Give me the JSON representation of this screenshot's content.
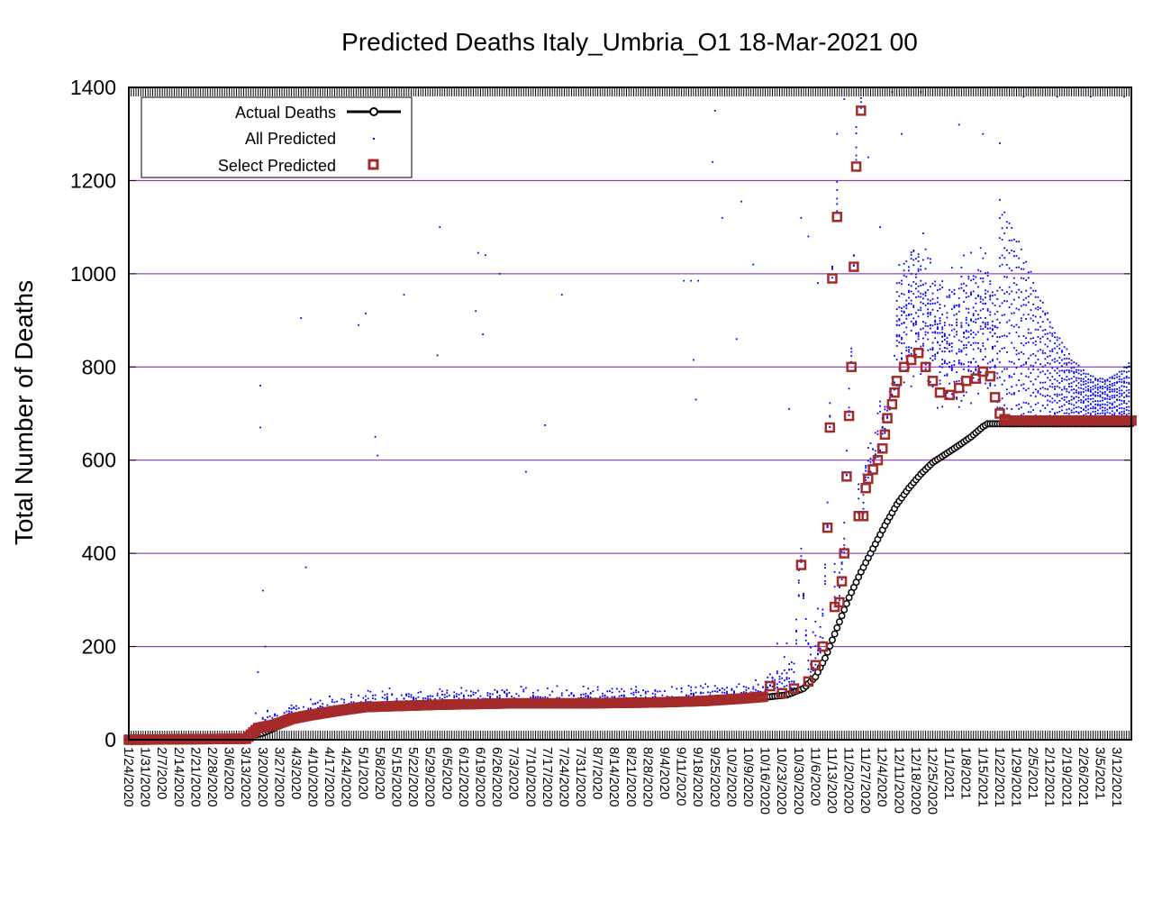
{
  "chart_data": {
    "type": "scatter",
    "title": "Predicted Deaths Italy_Umbria_O1 18-Mar-2021 00",
    "ylabel": "Total Number of Deaths",
    "xlabel": "",
    "ylim": [
      0,
      1400
    ],
    "yticks": [
      0,
      200,
      400,
      600,
      800,
      1000,
      1200,
      1400
    ],
    "x_start": "1/24/2020",
    "x_end": "3/18/2021",
    "x_tick_labels": [
      "1/24/2020",
      "1/31/2020",
      "2/7/2020",
      "2/14/2020",
      "2/21/2020",
      "2/28/2020",
      "3/6/2020",
      "3/13/2020",
      "3/20/2020",
      "3/27/2020",
      "4/3/2020",
      "4/10/2020",
      "4/17/2020",
      "4/24/2020",
      "5/1/2020",
      "5/8/2020",
      "5/15/2020",
      "5/22/2020",
      "5/29/2020",
      "6/5/2020",
      "6/12/2020",
      "6/19/2020",
      "6/26/2020",
      "7/3/2020",
      "7/10/2020",
      "7/17/2020",
      "7/24/2020",
      "7/31/2020",
      "8/7/2020",
      "8/14/2020",
      "8/21/2020",
      "8/28/2020",
      "9/4/2020",
      "9/11/2020",
      "9/18/2020",
      "9/25/2020",
      "10/2/2020",
      "10/9/2020",
      "10/16/2020",
      "10/23/2020",
      "10/30/2020",
      "11/6/2020",
      "11/13/2020",
      "11/20/2020",
      "11/27/2020",
      "12/4/2020",
      "12/11/2020",
      "12/18/2020",
      "12/25/2020",
      "1/1/2021",
      "1/8/2021",
      "1/15/2021",
      "1/22/2021",
      "1/29/2021",
      "2/5/2021",
      "2/12/2021",
      "2/19/2021",
      "2/26/2021",
      "3/5/2021",
      "3/12/2021"
    ],
    "grid": "horizontal",
    "legend_position": "top-left",
    "legend": [
      {
        "label": "Actual Deaths",
        "style": "line-circle",
        "color": "#000000"
      },
      {
        "label": "All Predicted",
        "style": "dot",
        "color": "#0000ff"
      },
      {
        "label": "Select Predicted",
        "style": "square",
        "color": "#a52a2a"
      }
    ],
    "series": [
      {
        "name": "Actual Deaths",
        "color": "#000000",
        "points": [
          [
            "3/13/2020",
            5
          ],
          [
            "3/20/2020",
            14
          ],
          [
            "3/27/2020",
            30
          ],
          [
            "4/3/2020",
            48
          ],
          [
            "4/10/2020",
            55
          ],
          [
            "4/17/2020",
            60
          ],
          [
            "4/24/2020",
            66
          ],
          [
            "5/1/2020",
            70
          ],
          [
            "5/15/2020",
            73
          ],
          [
            "6/1/2020",
            75
          ],
          [
            "7/1/2020",
            77
          ],
          [
            "8/1/2020",
            77
          ],
          [
            "9/1/2020",
            78
          ],
          [
            "9/20/2020",
            82
          ],
          [
            "10/10/2020",
            88
          ],
          [
            "10/25/2020",
            96
          ],
          [
            "11/1/2020",
            110
          ],
          [
            "11/6/2020",
            135
          ],
          [
            "11/10/2020",
            175
          ],
          [
            "11/15/2020",
            240
          ],
          [
            "11/20/2020",
            305
          ],
          [
            "11/25/2020",
            360
          ],
          [
            "11/30/2020",
            410
          ],
          [
            "12/5/2020",
            460
          ],
          [
            "12/10/2020",
            505
          ],
          [
            "12/15/2020",
            540
          ],
          [
            "12/20/2020",
            570
          ],
          [
            "12/25/2020",
            595
          ],
          [
            "12/31/2020",
            615
          ],
          [
            "1/5/2021",
            632
          ],
          [
            "1/10/2021",
            650
          ],
          [
            "1/15/2021",
            672
          ],
          [
            "1/17/2021",
            678
          ],
          [
            "3/18/2021",
            678
          ]
        ]
      },
      {
        "name": "Select Predicted",
        "color": "#a52a2a",
        "points": [
          [
            "1/24/2020",
            0
          ],
          [
            "3/13/2020",
            2
          ],
          [
            "3/18/2020",
            25
          ],
          [
            "3/25/2020",
            32
          ],
          [
            "4/1/2020",
            45
          ],
          [
            "4/8/2020",
            52
          ],
          [
            "4/20/2020",
            62
          ],
          [
            "5/1/2020",
            70
          ],
          [
            "6/1/2020",
            75
          ],
          [
            "7/1/2020",
            78
          ],
          [
            "8/1/2020",
            78
          ],
          [
            "9/1/2020",
            80
          ],
          [
            "9/20/2020",
            83
          ],
          [
            "10/5/2020",
            88
          ],
          [
            "10/15/2020",
            92
          ],
          [
            "10/18/2020",
            115
          ],
          [
            "10/23/2020",
            100
          ],
          [
            "10/28/2020",
            110
          ],
          [
            "10/31/2020",
            375
          ],
          [
            "11/3/2020",
            125
          ],
          [
            "11/6/2020",
            160
          ],
          [
            "11/9/2020",
            200
          ],
          [
            "11/11/2020",
            455
          ],
          [
            "11/12/2020",
            670
          ],
          [
            "11/13/2020",
            990
          ],
          [
            "11/14/2020",
            285
          ],
          [
            "11/15/2020",
            1122
          ],
          [
            "11/16/2020",
            295
          ],
          [
            "11/17/2020",
            340
          ],
          [
            "11/18/2020",
            400
          ],
          [
            "11/19/2020",
            565
          ],
          [
            "11/20/2020",
            695
          ],
          [
            "11/21/2020",
            800
          ],
          [
            "11/22/2020",
            1015
          ],
          [
            "11/23/2020",
            1230
          ],
          [
            "11/24/2020",
            480
          ],
          [
            "11/25/2020",
            1350
          ],
          [
            "11/26/2020",
            480
          ],
          [
            "11/27/2020",
            540
          ],
          [
            "11/28/2020",
            560
          ],
          [
            "11/30/2020",
            580
          ],
          [
            "12/2/2020",
            600
          ],
          [
            "12/4/2020",
            625
          ],
          [
            "12/5/2020",
            655
          ],
          [
            "12/6/2020",
            690
          ],
          [
            "12/8/2020",
            720
          ],
          [
            "12/9/2020",
            745
          ],
          [
            "12/10/2020",
            770
          ],
          [
            "12/13/2020",
            800
          ],
          [
            "12/16/2020",
            815
          ],
          [
            "12/19/2020",
            830
          ],
          [
            "12/22/2020",
            800
          ],
          [
            "12/25/2020",
            770
          ],
          [
            "12/28/2020",
            745
          ],
          [
            "1/1/2021",
            740
          ],
          [
            "1/5/2021",
            755
          ],
          [
            "1/8/2021",
            770
          ],
          [
            "1/12/2021",
            775
          ],
          [
            "1/15/2021",
            790
          ],
          [
            "1/18/2021",
            780
          ],
          [
            "1/20/2021",
            735
          ],
          [
            "1/22/2021",
            700
          ],
          [
            "1/24/2021",
            688
          ],
          [
            "2/1/2021",
            685
          ],
          [
            "3/1/2021",
            685
          ],
          [
            "3/18/2021",
            685
          ]
        ]
      },
      {
        "name": "All Predicted",
        "color": "#0000ff",
        "points": [
          [
            "3/18/2020",
            145
          ],
          [
            "3/19/2020",
            760
          ],
          [
            "3/19/2020",
            670
          ],
          [
            "3/20/2020",
            320
          ],
          [
            "3/21/2020",
            200
          ],
          [
            "4/5/2020",
            905
          ],
          [
            "4/7/2020",
            370
          ],
          [
            "4/29/2020",
            890
          ],
          [
            "5/2/2020",
            915
          ],
          [
            "5/6/2020",
            650
          ],
          [
            "5/7/2020",
            610
          ],
          [
            "5/18/2020",
            955
          ],
          [
            "6/2/2020",
            1100
          ],
          [
            "6/1/2020",
            825
          ],
          [
            "6/18/2020",
            1045
          ],
          [
            "6/21/2020",
            1040
          ],
          [
            "6/17/2020",
            920
          ],
          [
            "6/20/2020",
            870
          ],
          [
            "6/27/2020",
            1000
          ],
          [
            "7/23/2020",
            955
          ],
          [
            "7/16/2020",
            675
          ],
          [
            "7/8/2020",
            575
          ],
          [
            "9/12/2020",
            985
          ],
          [
            "9/15/2020",
            985
          ],
          [
            "9/18/2020",
            985
          ],
          [
            "9/16/2020",
            815
          ],
          [
            "9/17/2020",
            730
          ],
          [
            "9/24/2020",
            1240
          ],
          [
            "9/25/2020",
            1350
          ],
          [
            "9/28/2020",
            1120
          ],
          [
            "10/6/2020",
            1155
          ],
          [
            "10/11/2020",
            1020
          ],
          [
            "10/4/2020",
            860
          ],
          [
            "10/26/2020",
            710
          ],
          [
            "10/31/2020",
            1120
          ],
          [
            "11/3/2020",
            1080
          ],
          [
            "11/7/2020",
            980
          ],
          [
            "11/15/2020",
            1300
          ],
          [
            "11/18/2020",
            1375
          ],
          [
            "11/28/2020",
            1250
          ],
          [
            "12/3/2020",
            1100
          ],
          [
            "12/8/2020",
            1390
          ],
          [
            "12/12/2020",
            1300
          ],
          [
            "12/20/2020",
            1390
          ],
          [
            "1/5/2021",
            1320
          ],
          [
            "1/15/2021",
            1300
          ],
          [
            "1/22/2021",
            1280
          ],
          [
            "2/1/2021",
            1380
          ],
          [
            "2/15/2021",
            1380
          ],
          [
            "3/1/2021",
            1380
          ],
          [
            "3/15/2021",
            1380
          ]
        ]
      }
    ]
  }
}
